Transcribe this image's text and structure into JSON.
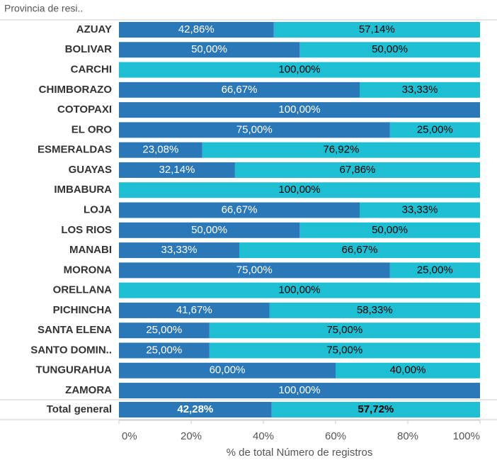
{
  "chart_data": {
    "type": "stacked_bar_horizontal",
    "header": "Provincia de resi..",
    "x_label": "% de total Número de registros",
    "categories": [
      "AZUAY",
      "BOLIVAR",
      "CARCHI",
      "CHIMBORAZO",
      "COTOPAXI",
      "EL ORO",
      "ESMERALDAS",
      "GUAYAS",
      "IMBABURA",
      "LOJA",
      "LOS RIOS",
      "MANABI",
      "MORONA",
      "ORELLANA",
      "PICHINCHA",
      "SANTA ELENA",
      "SANTO DOMIN..",
      "TUNGURAHUA",
      "ZAMORA",
      "Total general"
    ],
    "series": [
      {
        "color": "#2b78b8",
        "values": [
          42.86,
          50,
          0,
          66.67,
          100,
          75,
          23.08,
          32.14,
          0,
          66.67,
          50,
          33.33,
          75,
          0,
          41.67,
          25,
          25,
          60,
          100,
          42.28
        ],
        "value_labels": [
          "42,86%",
          "50,00%",
          null,
          "66,67%",
          "100,00%",
          "75,00%",
          "23,08%",
          "32,14%",
          null,
          "66,67%",
          "50,00%",
          "33,33%",
          "75,00%",
          null,
          "41,67%",
          "25,00%",
          "25,00%",
          "60,00%",
          "100,00%",
          "42,28%"
        ]
      },
      {
        "color": "#1ebfd3",
        "values": [
          57.14,
          50,
          100,
          33.33,
          0,
          25,
          76.92,
          67.86,
          100,
          33.33,
          50,
          66.67,
          25,
          100,
          58.33,
          75,
          75,
          40,
          0,
          57.72
        ],
        "value_labels": [
          "57,14%",
          "50,00%",
          "100,00%",
          "33,33%",
          null,
          "25,00%",
          "76,92%",
          "67,86%",
          "100,00%",
          "33,33%",
          "50,00%",
          "66,67%",
          "25,00%",
          "100,00%",
          "58,33%",
          "75,00%",
          "75,00%",
          "40,00%",
          null,
          "57,72%"
        ]
      }
    ],
    "xlim": [
      0,
      100
    ],
    "xticks": [
      {
        "value": 0,
        "label": "0%"
      },
      {
        "value": 20,
        "label": "20%"
      },
      {
        "value": 40,
        "label": "40%"
      },
      {
        "value": 60,
        "label": "60%"
      },
      {
        "value": 80,
        "label": "80%"
      },
      {
        "value": 100,
        "label": "100%"
      }
    ],
    "grid": false
  }
}
